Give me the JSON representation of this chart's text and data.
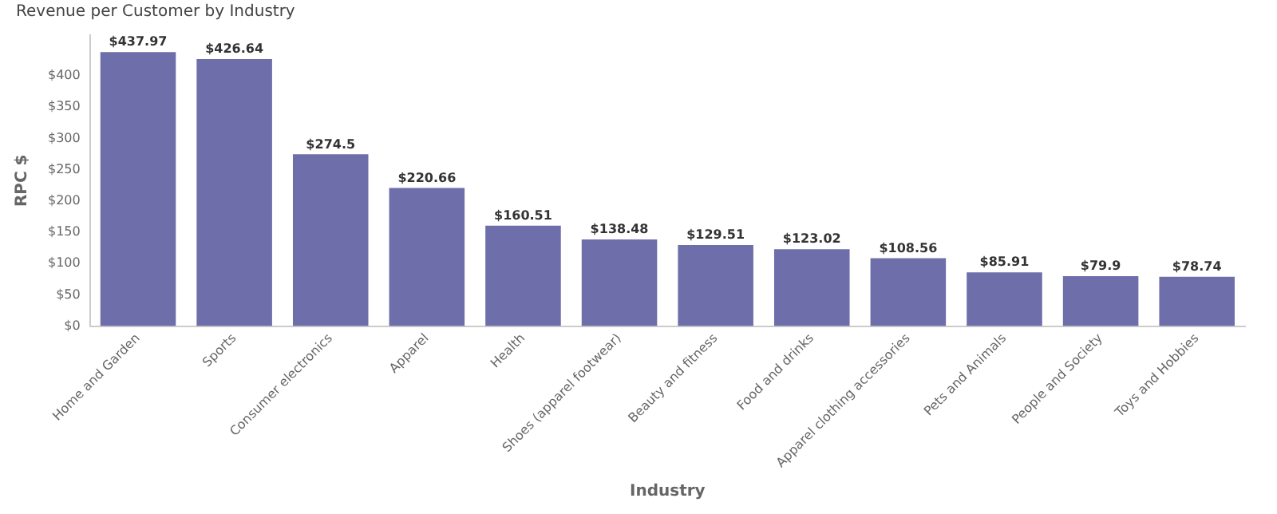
{
  "chart_data": {
    "type": "bar",
    "title": "Revenue per Customer by Industry",
    "xlabel": "Industry",
    "ylabel": "RPC $",
    "categories": [
      "Home and Garden",
      "Sports",
      "Consumer electronics",
      "Apparel",
      "Health",
      "Shoes (apparel footwear)",
      "Beauty and fitness",
      "Food and drinks",
      "Apparel clothing accessories",
      "Pets and Animals",
      "People and Society",
      "Toys and Hobbies"
    ],
    "values": [
      437.97,
      426.64,
      274.5,
      220.66,
      160.51,
      138.48,
      129.51,
      123.02,
      108.56,
      85.91,
      79.9,
      78.74
    ],
    "value_labels": [
      "$437.97",
      "$426.64",
      "$274.5",
      "$220.66",
      "$160.51",
      "$138.48",
      "$129.51",
      "$123.02",
      "$108.56",
      "$85.91",
      "$79.9",
      "$78.74"
    ],
    "color": "#6e6eaa",
    "ylim": [
      0,
      465
    ],
    "yticks": [
      {
        "value": 0,
        "label": "$0"
      },
      {
        "value": 50,
        "label": "$50"
      },
      {
        "value": 100,
        "label": "$100"
      },
      {
        "value": 150,
        "label": "$150"
      },
      {
        "value": 200,
        "label": "$200"
      },
      {
        "value": 250,
        "label": "$250"
      },
      {
        "value": 300,
        "label": "$300"
      },
      {
        "value": 350,
        "label": "$350"
      },
      {
        "value": 400,
        "label": "$400"
      }
    ],
    "grid": false,
    "legend": false
  }
}
